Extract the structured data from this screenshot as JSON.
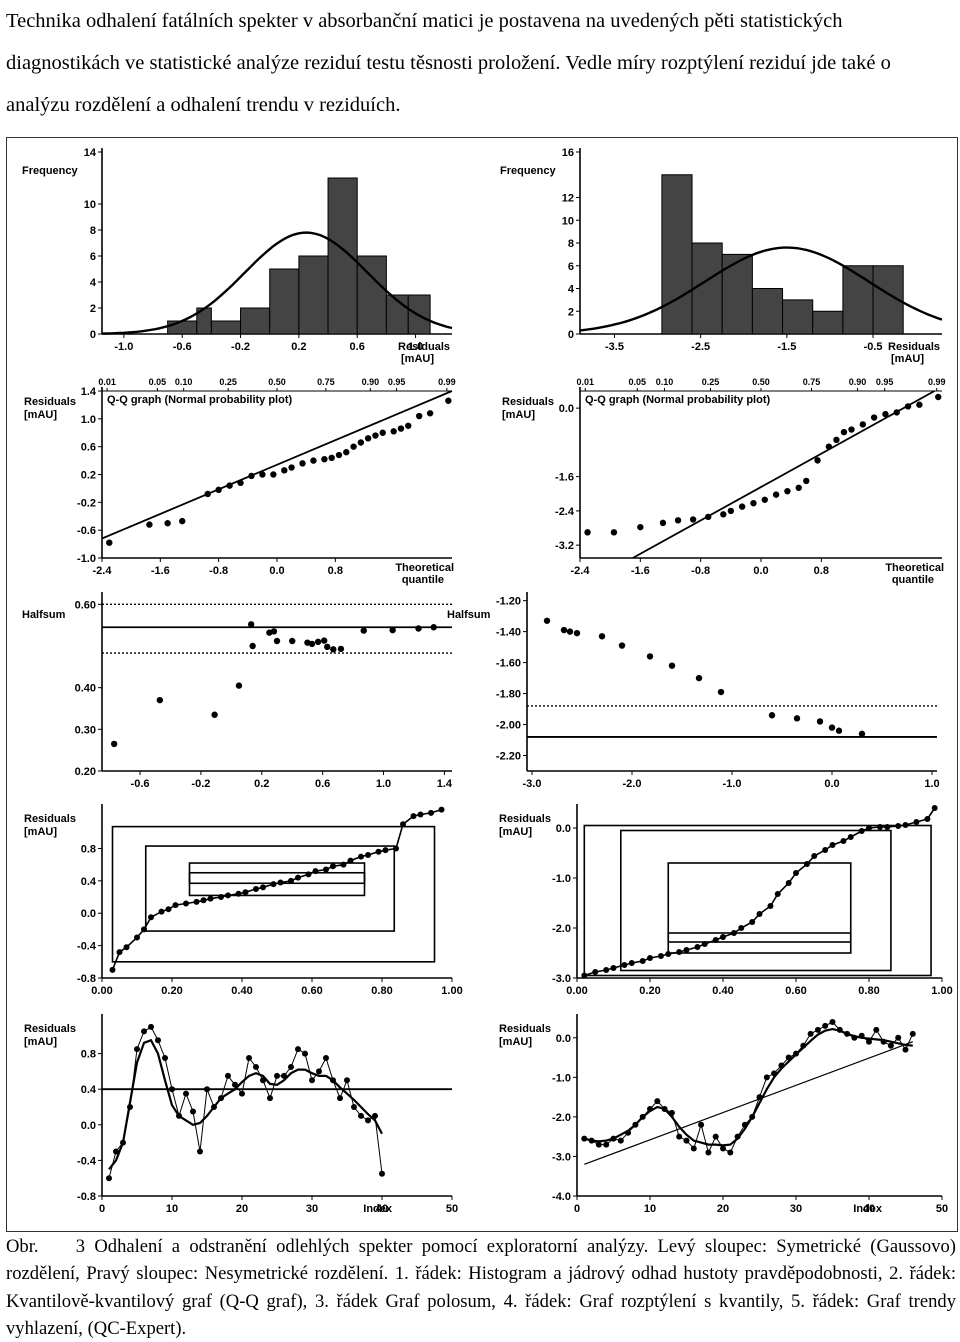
{
  "intro_text": "Technika odhalení fatálních spekter v absorbanční matici je postavena na uvedených pěti statistických diagnostikách ve statistické analýze reziduí testu těsnosti proložení. Vedle míry rozptýlení reziduí jde také o analýzu rozdělení a odhalení trendu v reziduích.",
  "caption": {
    "label": "Obr.",
    "text": "3 Odhalení a odstranění odlehlých spekter pomocí exploratorní analýzy. Levý sloupec: Symetrické (Gaussovo) rozdělení, Pravý sloupec: Nesymetrické rozdělení. 1. řádek: Histogram a jádrový odhad hustoty pravděpodobnosti, 2. řádek: Kvantilově-kvantilový graf (Q-Q graf), 3. řádek Graf polosum, 4. řádek: Graf rozptýlení s kvantily, 5. řádek: Graf trendy vyhlazení, (QC-Expert)."
  },
  "chart_data": [
    {
      "type": "bar",
      "panel": "histogram-left",
      "ylabel": "Frequency",
      "xlabel": "Residuals [mAU]",
      "xticks": [
        "-1.0",
        "-0.6",
        "-0.2",
        "0.2",
        "0.6",
        "1.0"
      ],
      "yticks": [
        "0",
        "2",
        "4",
        "6",
        "8",
        "10",
        "14"
      ],
      "xlim": [
        -1.15,
        1.25
      ],
      "ylim": [
        0,
        14
      ],
      "bin_edges": [
        -0.7,
        -0.5,
        -0.4,
        -0.2,
        0.0,
        0.2,
        0.4,
        0.6,
        0.8,
        0.95,
        1.1
      ],
      "values": [
        1,
        2,
        1,
        2,
        5,
        6,
        12,
        6,
        3,
        3
      ],
      "curve": "normal density, peak 7.8 near 0.25"
    },
    {
      "type": "bar",
      "panel": "histogram-right",
      "ylabel": "Frequency",
      "xlabel": "Residuals [mAU]",
      "xticks": [
        "-3.5",
        "-2.5",
        "-1.5",
        "-0.5"
      ],
      "yticks": [
        "0",
        "2",
        "4",
        "6",
        "8",
        "10",
        "12",
        "16"
      ],
      "xlim": [
        -3.9,
        0.3
      ],
      "ylim": [
        0,
        16
      ],
      "bin_edges": [
        -2.95,
        -2.6,
        -2.25,
        -1.9,
        -1.55,
        -1.2,
        -0.85,
        -0.5,
        -0.15
      ],
      "values": [
        14,
        8,
        7,
        4,
        3,
        2,
        6,
        6
      ],
      "curve": "normal density, peak 7.6 near -1.5"
    },
    {
      "type": "scatter",
      "panel": "qq-left",
      "title": "Q-Q graph (Normal probability plot)",
      "ylabel": "Residuals [mAU]",
      "xlabel": "Theoretical quantile",
      "top_ticks": [
        "0.01",
        "0.05",
        "0.10",
        "0.25",
        "0.50",
        "0.75",
        "0.90",
        "0.95",
        "0.99"
      ],
      "xticks": [
        "-2.4",
        "-1.6",
        "-0.8",
        "0.0",
        "0.8"
      ],
      "yticks": [
        "1.4",
        "1.0",
        "0.6",
        "0.2",
        "-0.2",
        "-0.6",
        "-1.0"
      ],
      "xlim": [
        -2.4,
        2.4
      ],
      "ylim": [
        -1.0,
        1.4
      ],
      "line": [
        [
          -2.4,
          -0.72
        ],
        [
          2.4,
          1.4
        ]
      ],
      "points": [
        [
          -2.3,
          -0.78
        ],
        [
          -1.75,
          -0.52
        ],
        [
          -1.5,
          -0.5
        ],
        [
          -1.3,
          -0.47
        ],
        [
          -0.95,
          -0.08
        ],
        [
          -0.8,
          -0.02
        ],
        [
          -0.65,
          0.04
        ],
        [
          -0.5,
          0.08
        ],
        [
          -0.35,
          0.18
        ],
        [
          -0.2,
          0.2
        ],
        [
          -0.05,
          0.2
        ],
        [
          0.1,
          0.26
        ],
        [
          0.2,
          0.3
        ],
        [
          0.35,
          0.36
        ],
        [
          0.5,
          0.4
        ],
        [
          0.65,
          0.42
        ],
        [
          0.75,
          0.44
        ],
        [
          0.85,
          0.48
        ],
        [
          0.95,
          0.52
        ],
        [
          1.05,
          0.6
        ],
        [
          1.15,
          0.66
        ],
        [
          1.25,
          0.72
        ],
        [
          1.35,
          0.76
        ],
        [
          1.45,
          0.8
        ],
        [
          1.6,
          0.82
        ],
        [
          1.7,
          0.86
        ],
        [
          1.8,
          0.9
        ],
        [
          1.95,
          1.04
        ],
        [
          2.1,
          1.08
        ],
        [
          2.35,
          1.26
        ]
      ]
    },
    {
      "type": "scatter",
      "panel": "qq-right",
      "title": "Q-Q graph (Normal probability plot)",
      "ylabel": "Residuals [mAU]",
      "xlabel": "Theoretical quantile",
      "top_ticks": [
        "0.01",
        "0.05",
        "0.10",
        "0.25",
        "0.50",
        "0.75",
        "0.90",
        "0.95",
        "0.99"
      ],
      "xticks": [
        "-2.4",
        "-1.6",
        "-0.8",
        "0.0",
        "0.8"
      ],
      "yticks": [
        "0.0",
        "-1.6",
        "-2.4",
        "-3.2"
      ],
      "xlim": [
        -2.4,
        2.4
      ],
      "ylim": [
        -3.5,
        0.4
      ],
      "line": [
        [
          -1.7,
          -3.5
        ],
        [
          2.3,
          0.4
        ]
      ],
      "points": [
        [
          -2.3,
          -2.9
        ],
        [
          -1.95,
          -2.9
        ],
        [
          -1.6,
          -2.78
        ],
        [
          -1.3,
          -2.68
        ],
        [
          -1.1,
          -2.62
        ],
        [
          -0.9,
          -2.6
        ],
        [
          -0.7,
          -2.54
        ],
        [
          -0.5,
          -2.48
        ],
        [
          -0.4,
          -2.4
        ],
        [
          -0.25,
          -2.3
        ],
        [
          -0.1,
          -2.22
        ],
        [
          0.05,
          -2.14
        ],
        [
          0.2,
          -2.02
        ],
        [
          0.35,
          -1.94
        ],
        [
          0.5,
          -1.86
        ],
        [
          0.6,
          -1.7
        ],
        [
          0.75,
          -1.22
        ],
        [
          0.9,
          -0.9
        ],
        [
          1.0,
          -0.74
        ],
        [
          1.1,
          -0.56
        ],
        [
          1.2,
          -0.5
        ],
        [
          1.35,
          -0.38
        ],
        [
          1.5,
          -0.22
        ],
        [
          1.65,
          -0.14
        ],
        [
          1.8,
          -0.1
        ],
        [
          1.95,
          0.04
        ],
        [
          2.1,
          0.08
        ],
        [
          2.35,
          0.26
        ]
      ]
    },
    {
      "type": "scatter",
      "panel": "halfsum-left",
      "ylabel": "Halfsum",
      "xticks": [
        "-0.6",
        "-0.2",
        "0.2",
        "0.6",
        "1.0",
        "1.4"
      ],
      "yticks": [
        "0.60",
        "0.40",
        "0.30",
        "0.20"
      ],
      "xlim": [
        -0.85,
        1.45
      ],
      "ylim": [
        0.2,
        0.62
      ],
      "reference_lines": {
        "solid": 0.545,
        "dotted": [
          0.6,
          0.483
        ]
      },
      "points": [
        [
          -0.77,
          0.265
        ],
        [
          -0.47,
          0.37
        ],
        [
          -0.11,
          0.335
        ],
        [
          0.05,
          0.405
        ],
        [
          0.13,
          0.552
        ],
        [
          0.14,
          0.5
        ],
        [
          0.25,
          0.532
        ],
        [
          0.28,
          0.535
        ],
        [
          0.3,
          0.512
        ],
        [
          0.4,
          0.512
        ],
        [
          0.5,
          0.508
        ],
        [
          0.53,
          0.505
        ],
        [
          0.57,
          0.51
        ],
        [
          0.61,
          0.513
        ],
        [
          0.63,
          0.498
        ],
        [
          0.67,
          0.492
        ],
        [
          0.72,
          0.493
        ],
        [
          0.87,
          0.537
        ],
        [
          1.06,
          0.538
        ],
        [
          1.23,
          0.542
        ],
        [
          1.33,
          0.545
        ]
      ]
    },
    {
      "type": "scatter",
      "panel": "halfsum-right",
      "ylabel": "Halfsum",
      "xticks": [
        "-3.0",
        "-2.0",
        "-1.0",
        "0.0",
        "1.0"
      ],
      "yticks": [
        "-1.20",
        "-1.40",
        "-1.60",
        "-1.80",
        "-2.00",
        "-2.20"
      ],
      "xlim": [
        -3.05,
        1.05
      ],
      "ylim": [
        -2.3,
        -1.17
      ],
      "reference_lines": {
        "solid": -2.08,
        "dotted": [
          -1.88
        ]
      },
      "points": [
        [
          -2.85,
          -1.33
        ],
        [
          -2.68,
          -1.39
        ],
        [
          -2.62,
          -1.4
        ],
        [
          -2.55,
          -1.41
        ],
        [
          -2.3,
          -1.43
        ],
        [
          -2.1,
          -1.49
        ],
        [
          -1.82,
          -1.56
        ],
        [
          -1.6,
          -1.62
        ],
        [
          -1.33,
          -1.7
        ],
        [
          -1.11,
          -1.79
        ],
        [
          -0.6,
          -1.94
        ],
        [
          -0.35,
          -1.96
        ],
        [
          -0.12,
          -1.98
        ],
        [
          0.0,
          -2.02
        ],
        [
          0.07,
          -2.04
        ],
        [
          0.3,
          -2.06
        ]
      ]
    },
    {
      "type": "line",
      "panel": "quantile-left",
      "ylabel": "Residuals [mAU]",
      "xticks": [
        "0.00",
        "0.20",
        "0.40",
        "0.60",
        "0.80",
        "1.00"
      ],
      "yticks": [
        "0.8",
        "0.4",
        "0.0",
        "-0.4",
        "-0.8"
      ],
      "xlim": [
        0,
        1
      ],
      "ylim": [
        -0.8,
        1.3
      ],
      "boxes": [
        [
          0.03,
          0.95,
          -0.6,
          1.07
        ],
        [
          0.125,
          0.835,
          -0.22,
          0.83
        ],
        [
          0.25,
          0.75,
          0.22,
          0.62
        ],
        [
          0.25,
          0.75,
          0.37,
          0.5
        ]
      ],
      "x": [
        0.03,
        0.05,
        0.07,
        0.1,
        0.12,
        0.14,
        0.17,
        0.19,
        0.21,
        0.24,
        0.27,
        0.29,
        0.31,
        0.34,
        0.36,
        0.39,
        0.41,
        0.44,
        0.46,
        0.49,
        0.51,
        0.54,
        0.56,
        0.59,
        0.61,
        0.64,
        0.66,
        0.69,
        0.71,
        0.74,
        0.76,
        0.79,
        0.81,
        0.84,
        0.86,
        0.89,
        0.91,
        0.94,
        0.97
      ],
      "y": [
        -0.7,
        -0.48,
        -0.42,
        -0.3,
        -0.2,
        -0.05,
        0.02,
        0.05,
        0.1,
        0.12,
        0.14,
        0.16,
        0.18,
        0.2,
        0.22,
        0.24,
        0.26,
        0.3,
        0.32,
        0.36,
        0.38,
        0.4,
        0.44,
        0.48,
        0.52,
        0.54,
        0.58,
        0.6,
        0.65,
        0.7,
        0.72,
        0.76,
        0.78,
        0.8,
        1.1,
        1.2,
        1.22,
        1.24,
        1.28
      ]
    },
    {
      "type": "line",
      "panel": "quantile-right",
      "ylabel": "Residuals [mAU]",
      "xticks": [
        "0.00",
        "0.20",
        "0.40",
        "0.60",
        "0.80",
        "1.00"
      ],
      "yticks": [
        "0.0",
        "-1.0",
        "-2.0",
        "-3.0"
      ],
      "xlim": [
        0,
        1
      ],
      "ylim": [
        -3.0,
        0.4
      ],
      "boxes": [
        [
          0.02,
          0.97,
          -2.95,
          0.05
        ],
        [
          0.12,
          0.86,
          -2.85,
          -0.05
        ],
        [
          0.25,
          0.75,
          -2.5,
          -0.7
        ],
        [
          0.25,
          0.75,
          -2.28,
          -2.1
        ]
      ],
      "x": [
        0.02,
        0.05,
        0.08,
        0.1,
        0.13,
        0.15,
        0.18,
        0.2,
        0.23,
        0.25,
        0.28,
        0.3,
        0.33,
        0.35,
        0.38,
        0.4,
        0.43,
        0.45,
        0.48,
        0.5,
        0.53,
        0.55,
        0.58,
        0.6,
        0.63,
        0.65,
        0.68,
        0.7,
        0.73,
        0.75,
        0.78,
        0.8,
        0.83,
        0.85,
        0.88,
        0.9,
        0.93,
        0.96,
        0.98
      ],
      "y": [
        -2.95,
        -2.88,
        -2.84,
        -2.8,
        -2.74,
        -2.7,
        -2.66,
        -2.6,
        -2.56,
        -2.52,
        -2.48,
        -2.44,
        -2.38,
        -2.32,
        -2.24,
        -2.18,
        -2.1,
        -2.0,
        -1.88,
        -1.72,
        -1.56,
        -1.32,
        -1.1,
        -0.9,
        -0.72,
        -0.56,
        -0.44,
        -0.34,
        -0.26,
        -0.18,
        -0.06,
        0.0,
        0.02,
        0.02,
        0.04,
        0.06,
        0.12,
        0.18,
        0.4
      ]
    },
    {
      "type": "line",
      "panel": "trend-left",
      "ylabel": "Residuals [mAU]",
      "xlabel": "Index",
      "xticks": [
        "0",
        "10",
        "20",
        "30",
        "40",
        "50"
      ],
      "yticks": [
        "0.8",
        "0.4",
        "0.0",
        "-0.4",
        "-0.8"
      ],
      "xlim": [
        0,
        50
      ],
      "ylim": [
        -0.8,
        1.2
      ],
      "reference_line": 0.4,
      "x": [
        1,
        2,
        3,
        4,
        5,
        6,
        7,
        8,
        9,
        10,
        11,
        12,
        13,
        14,
        15,
        16,
        17,
        18,
        19,
        20,
        21,
        22,
        23,
        24,
        25,
        26,
        27,
        28,
        29,
        30,
        31,
        32,
        33,
        34,
        35,
        36,
        37,
        38,
        39,
        40
      ],
      "y": [
        -0.6,
        -0.3,
        -0.2,
        0.2,
        0.85,
        1.05,
        1.1,
        0.95,
        0.75,
        0.4,
        0.1,
        0.35,
        0.15,
        -0.3,
        0.4,
        0.2,
        0.3,
        0.55,
        0.45,
        0.35,
        0.75,
        0.65,
        0.5,
        0.3,
        0.55,
        0.55,
        0.65,
        0.85,
        0.8,
        0.5,
        0.6,
        0.75,
        0.5,
        0.3,
        0.5,
        0.2,
        0.1,
        0.05,
        0.1,
        -0.55
      ],
      "smooth_y": [
        -0.5,
        -0.4,
        -0.2,
        0.25,
        0.7,
        0.92,
        0.95,
        0.8,
        0.5,
        0.22,
        0.1,
        0.05,
        0.0,
        0.02,
        0.1,
        0.2,
        0.3,
        0.35,
        0.4,
        0.48,
        0.55,
        0.58,
        0.55,
        0.46,
        0.45,
        0.5,
        0.58,
        0.62,
        0.62,
        0.58,
        0.55,
        0.55,
        0.5,
        0.42,
        0.35,
        0.28,
        0.2,
        0.12,
        0.05,
        -0.1
      ]
    },
    {
      "type": "line",
      "panel": "trend-right",
      "ylabel": "Residuals [mAU]",
      "xlabel": "Index",
      "xticks": [
        "0",
        "10",
        "20",
        "30",
        "40",
        "50"
      ],
      "yticks": [
        "0.0",
        "-1.0",
        "-2.0",
        "-3.0",
        "-4.0"
      ],
      "xlim": [
        0,
        50
      ],
      "ylim": [
        -4.0,
        0.5
      ],
      "trend_line": [
        [
          1,
          -3.2
        ],
        [
          46,
          -0.1
        ]
      ],
      "x": [
        1,
        2,
        3,
        4,
        5,
        6,
        7,
        8,
        9,
        10,
        11,
        12,
        13,
        14,
        15,
        16,
        17,
        18,
        19,
        20,
        21,
        22,
        23,
        24,
        25,
        26,
        27,
        28,
        29,
        30,
        31,
        32,
        33,
        34,
        35,
        36,
        37,
        38,
        39,
        40,
        41,
        42,
        43,
        44,
        45,
        46
      ],
      "y": [
        -2.55,
        -2.6,
        -2.7,
        -2.7,
        -2.55,
        -2.6,
        -2.4,
        -2.2,
        -2.0,
        -1.8,
        -1.6,
        -1.8,
        -1.9,
        -2.5,
        -2.6,
        -2.8,
        -2.2,
        -2.9,
        -2.5,
        -2.8,
        -2.9,
        -2.5,
        -2.2,
        -2.0,
        -1.5,
        -1.0,
        -0.9,
        -0.7,
        -0.5,
        -0.4,
        -0.2,
        0.1,
        0.2,
        0.3,
        0.4,
        0.2,
        0.1,
        0.0,
        0.05,
        -0.1,
        0.2,
        -0.1,
        -0.2,
        0.0,
        -0.3,
        0.1
      ],
      "smooth_y": [
        -2.55,
        -2.6,
        -2.62,
        -2.6,
        -2.55,
        -2.45,
        -2.35,
        -2.2,
        -2.0,
        -1.85,
        -1.75,
        -1.8,
        -2.0,
        -2.25,
        -2.45,
        -2.6,
        -2.65,
        -2.7,
        -2.7,
        -2.72,
        -2.7,
        -2.55,
        -2.3,
        -2.0,
        -1.65,
        -1.3,
        -1.0,
        -0.78,
        -0.6,
        -0.42,
        -0.25,
        -0.08,
        0.08,
        0.18,
        0.22,
        0.18,
        0.1,
        0.04,
        0.0,
        -0.02,
        -0.04,
        -0.06,
        -0.1,
        -0.14,
        -0.18,
        -0.2
      ]
    }
  ]
}
